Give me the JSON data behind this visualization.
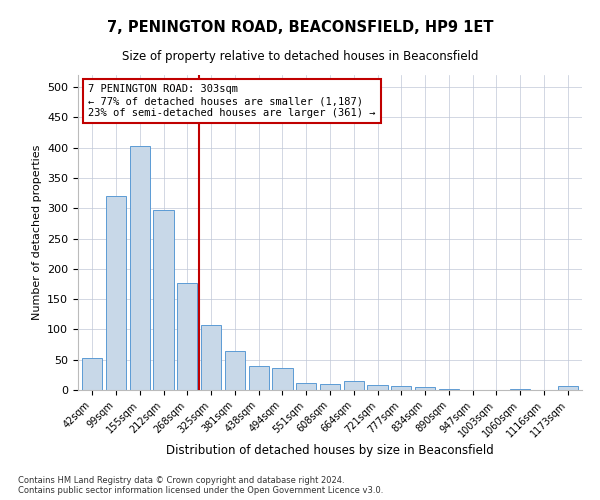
{
  "title": "7, PENINGTON ROAD, BEACONSFIELD, HP9 1ET",
  "subtitle": "Size of property relative to detached houses in Beaconsfield",
  "xlabel": "Distribution of detached houses by size in Beaconsfield",
  "ylabel": "Number of detached properties",
  "categories": [
    "42sqm",
    "99sqm",
    "155sqm",
    "212sqm",
    "268sqm",
    "325sqm",
    "381sqm",
    "438sqm",
    "494sqm",
    "551sqm",
    "608sqm",
    "664sqm",
    "721sqm",
    "777sqm",
    "834sqm",
    "890sqm",
    "947sqm",
    "1003sqm",
    "1060sqm",
    "1116sqm",
    "1173sqm"
  ],
  "values": [
    53,
    320,
    402,
    297,
    176,
    107,
    65,
    40,
    36,
    11,
    10,
    15,
    9,
    7,
    5,
    2,
    0,
    0,
    1,
    0,
    6
  ],
  "bar_color": "#c8d8e8",
  "bar_edge_color": "#5b9bd5",
  "vline_x_index": 5,
  "vline_color": "#c00000",
  "annotation_text": "7 PENINGTON ROAD: 303sqm\n← 77% of detached houses are smaller (1,187)\n23% of semi-detached houses are larger (361) →",
  "annotation_box_color": "#ffffff",
  "annotation_box_edge": "#c00000",
  "ylim": [
    0,
    520
  ],
  "yticks": [
    0,
    50,
    100,
    150,
    200,
    250,
    300,
    350,
    400,
    450,
    500
  ],
  "footnote": "Contains HM Land Registry data © Crown copyright and database right 2024.\nContains public sector information licensed under the Open Government Licence v3.0.",
  "bg_color": "#ffffff",
  "grid_color": "#c0c8d8",
  "figsize": [
    6.0,
    5.0
  ],
  "dpi": 100
}
